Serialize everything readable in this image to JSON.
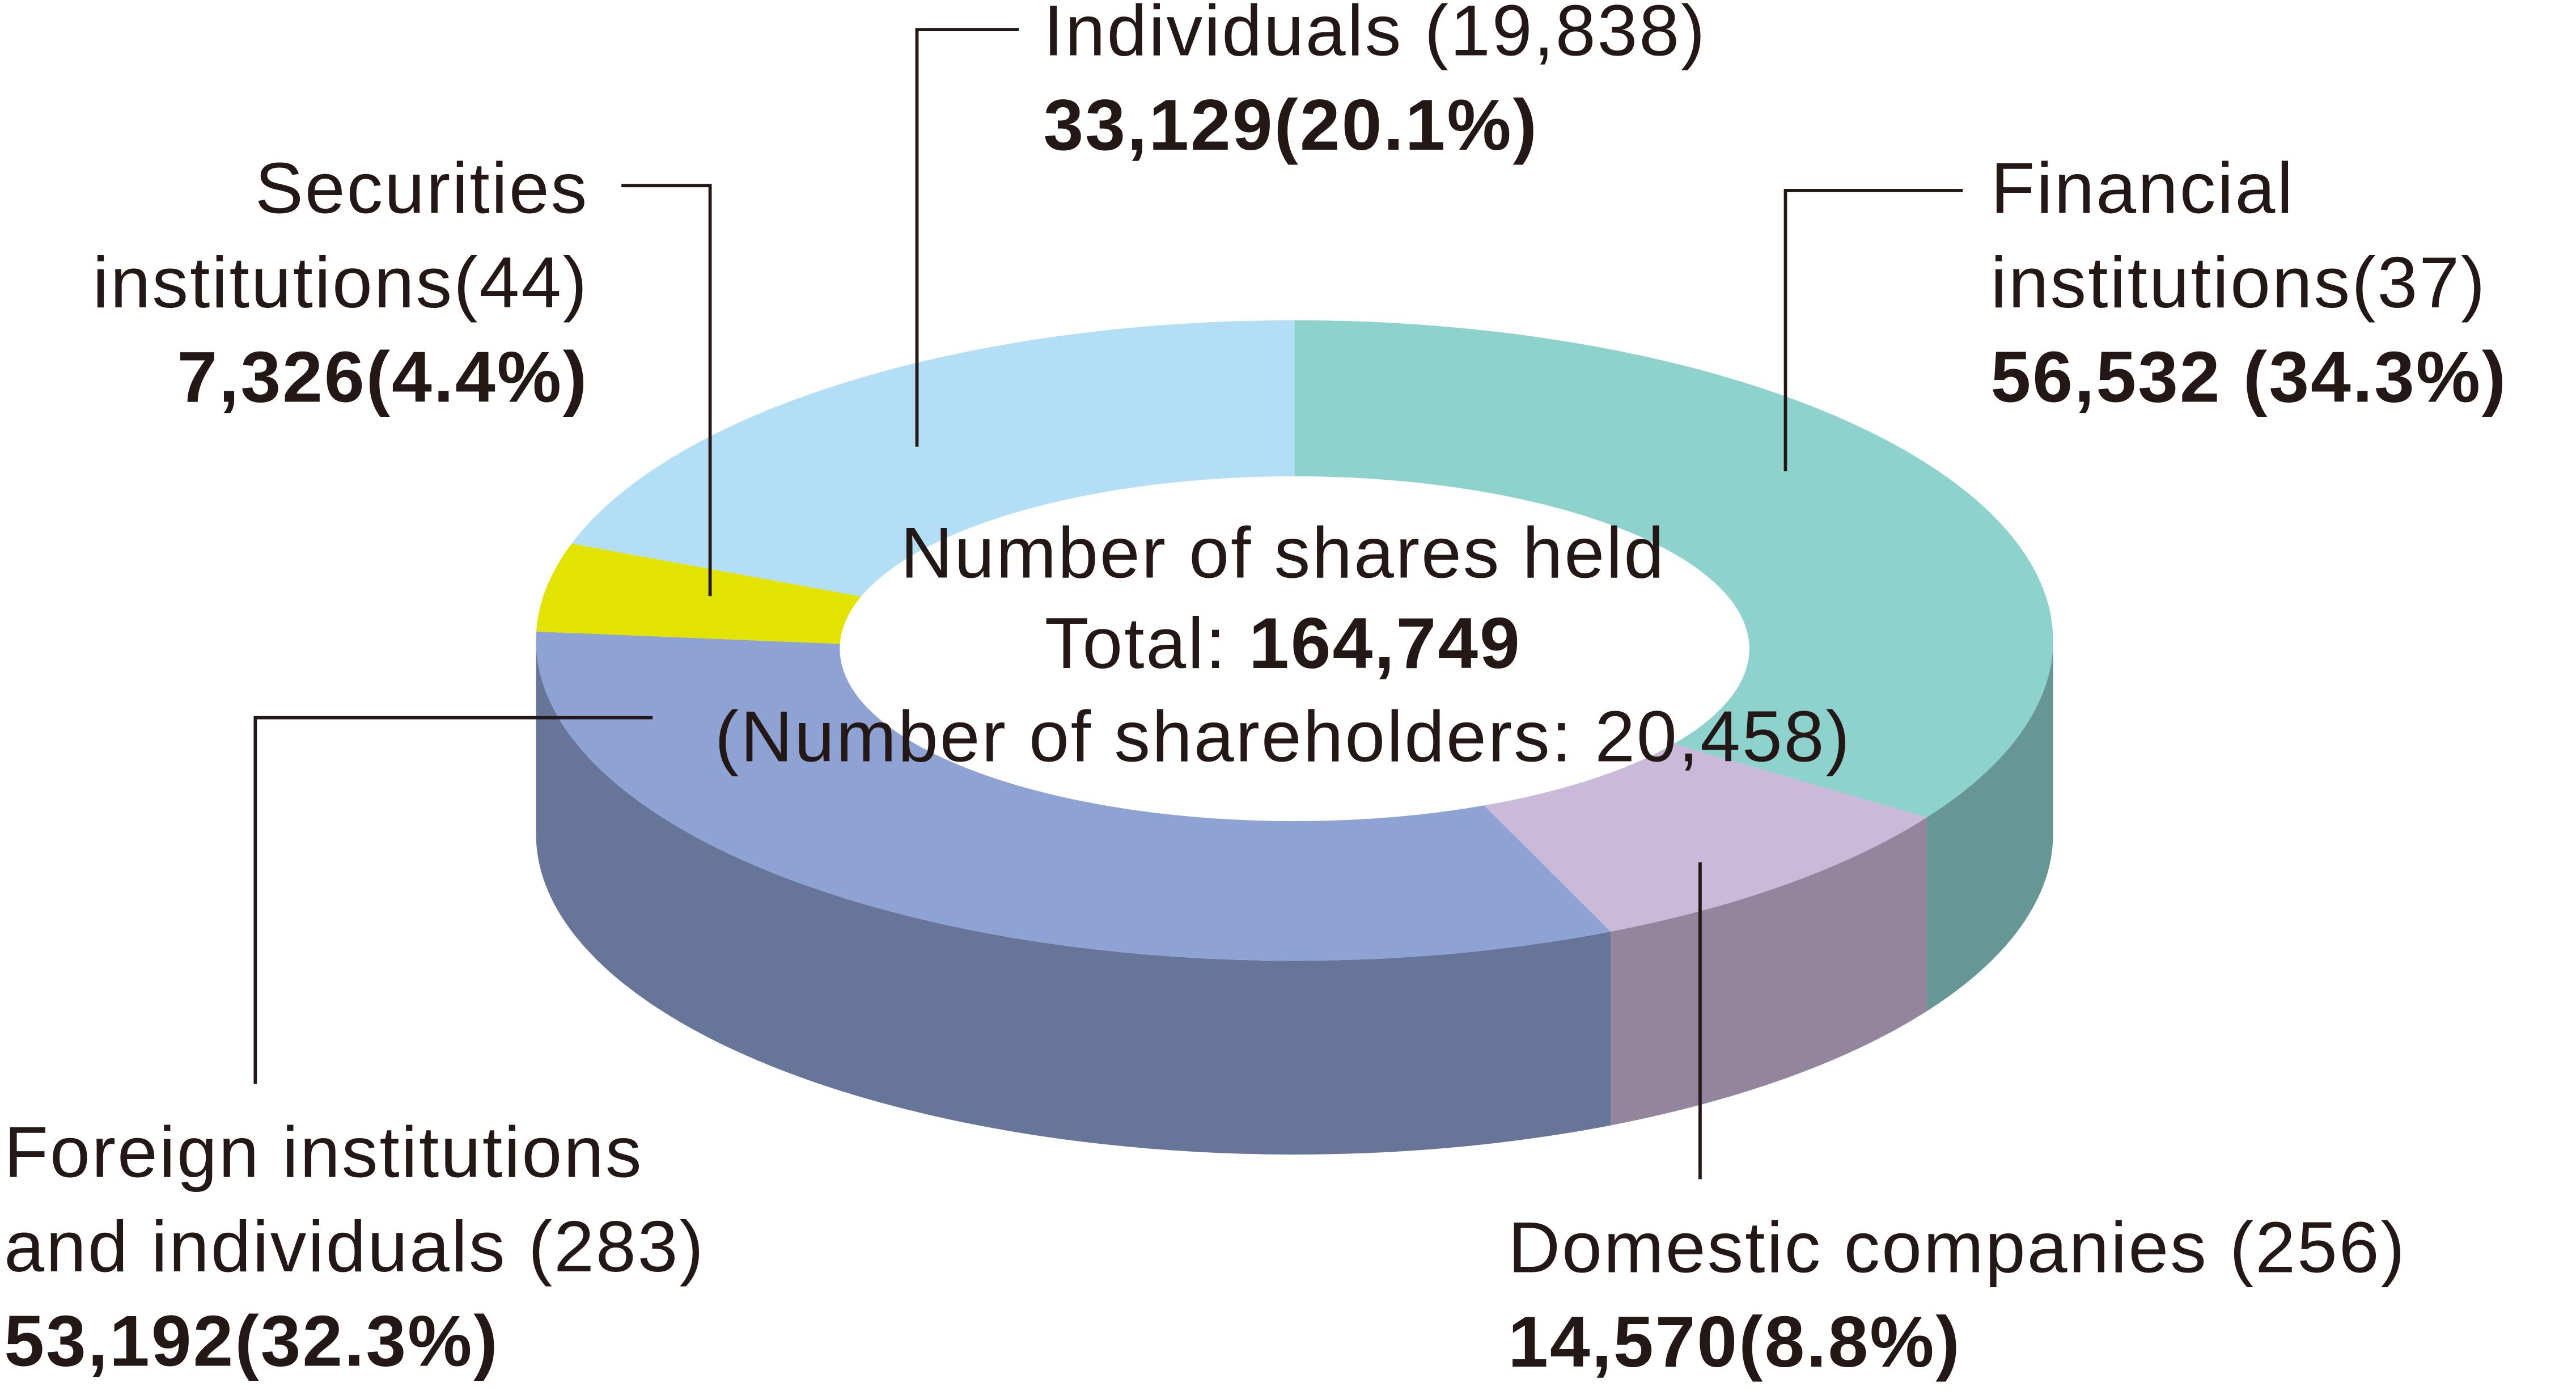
{
  "chart_data": {
    "type": "pie",
    "title": "Number of shares held",
    "total_label": "Total:",
    "total": "164,749",
    "shareholders_note": "(Number of shareholders: 20,458)",
    "categories": [
      [
        "Financial",
        "institutions(37)"
      ],
      [
        "Domestic companies (256)"
      ],
      [
        "Foreign institutions",
        "and individuals (283)"
      ],
      [
        "Securities",
        "institutions(44)"
      ],
      [
        "Individuals (19,838)"
      ]
    ],
    "values": [
      56532,
      14570,
      53192,
      7326,
      33129
    ],
    "value_labels": [
      "56,532 (34.3%)",
      "14,570(8.8%)",
      "53,192(32.3%)",
      "7,326(4.4%)",
      "33,129(20.1%)"
    ],
    "colors": [
      "#8dd2cd",
      "#cbb9da",
      "#8ea3d3",
      "#e3e300",
      "#b3dff6"
    ]
  }
}
